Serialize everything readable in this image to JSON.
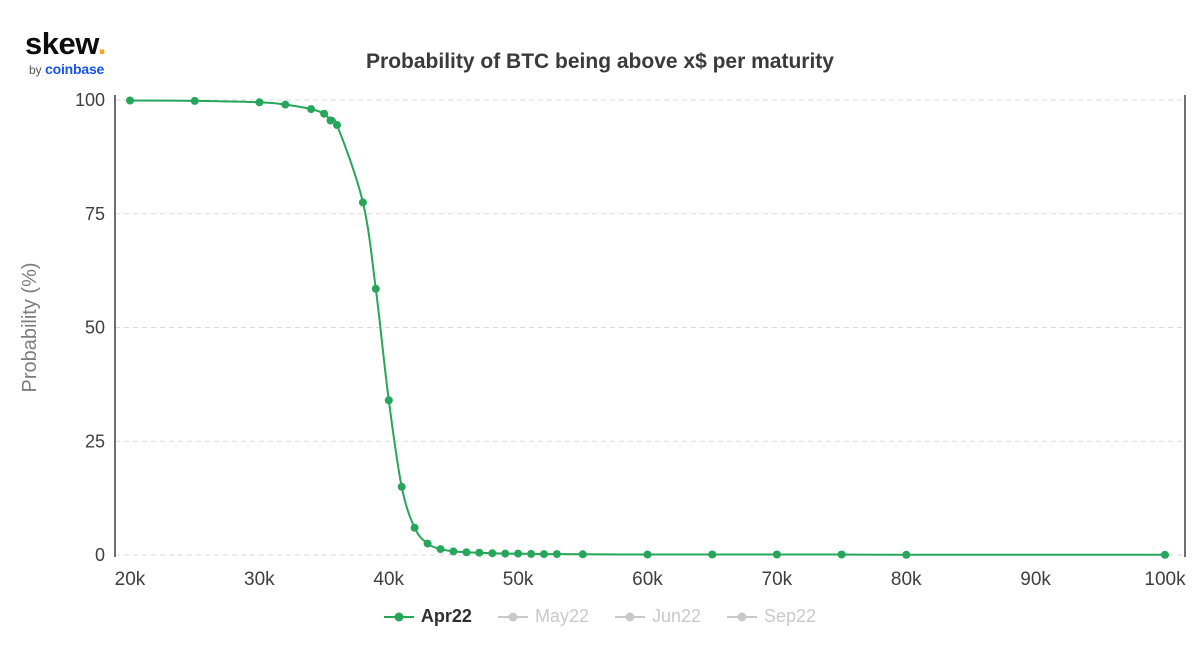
{
  "logo": {
    "brand": "skew",
    "dot": ".",
    "by": "by",
    "partner": "coinbase"
  },
  "chart_data": {
    "type": "line",
    "title": "Probability of BTC being above x$ per maturity",
    "xlabel": "",
    "ylabel": "Probability (%)",
    "xlim": [
      20000,
      100000
    ],
    "ylim": [
      0,
      100
    ],
    "xticks": [
      20000,
      30000,
      40000,
      50000,
      60000,
      70000,
      80000,
      90000,
      100000
    ],
    "xtick_labels": [
      "20k",
      "30k",
      "40k",
      "50k",
      "60k",
      "70k",
      "80k",
      "90k",
      "100k"
    ],
    "yticks": [
      0,
      25,
      50,
      75,
      100
    ],
    "grid": "dashed-horizontal",
    "legend_position": "bottom-center",
    "series": [
      {
        "name": "Apr22",
        "color": "#26a65b",
        "active": true,
        "x": [
          20000,
          25000,
          30000,
          32000,
          34000,
          35000,
          35500,
          36000,
          38000,
          39000,
          40000,
          41000,
          42000,
          43000,
          44000,
          45000,
          46000,
          47000,
          48000,
          49000,
          50000,
          51000,
          52000,
          53000,
          55000,
          60000,
          65000,
          70000,
          75000,
          80000,
          100000
        ],
        "y": [
          99.9,
          99.8,
          99.5,
          99.0,
          98.0,
          97.0,
          95.5,
          94.5,
          77.5,
          58.5,
          34.0,
          15.0,
          6.0,
          2.5,
          1.3,
          0.8,
          0.6,
          0.5,
          0.4,
          0.3,
          0.3,
          0.25,
          0.2,
          0.2,
          0.15,
          0.1,
          0.1,
          0.1,
          0.1,
          0.05,
          0.05
        ]
      },
      {
        "name": "May22",
        "color": "#c9c9c9",
        "active": false,
        "x": [],
        "y": []
      },
      {
        "name": "Jun22",
        "color": "#c9c9c9",
        "active": false,
        "x": [],
        "y": []
      },
      {
        "name": "Sep22",
        "color": "#c9c9c9",
        "active": false,
        "x": [],
        "y": []
      }
    ],
    "colors": {
      "grid": "#d9d9d9",
      "axis": "#3f3f3f",
      "tick_text": "#3f3f3f",
      "axis_label": "#7d7d7d",
      "title": "#3a3a3a",
      "inactive_legend": "#c9c9c9"
    }
  }
}
